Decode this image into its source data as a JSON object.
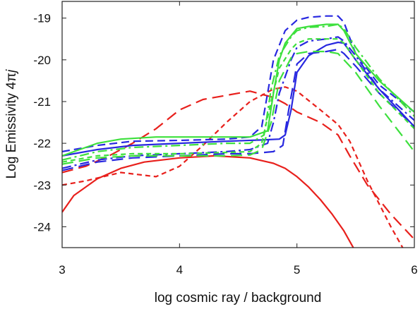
{
  "chart_data": {
    "type": "line",
    "xlabel": "log cosmic ray / background",
    "ylabel_main": "Log Emissivity 4",
    "ylabel_pi": "π",
    "ylabel_j": "j",
    "xlim": [
      3,
      6
    ],
    "ylim": [
      -24.5,
      -18.6
    ],
    "xticks": [
      3,
      4,
      5,
      6
    ],
    "xtick_labels": [
      "3",
      "4",
      "5",
      "6"
    ],
    "yticks": [
      -19,
      -20,
      -21,
      -22,
      -23,
      -24
    ],
    "ytick_labels": [
      "-19",
      "-20",
      "-21",
      "-22",
      "-23",
      "-24"
    ],
    "grid": false,
    "series": [
      {
        "color": "#e8201c",
        "dash": "solid",
        "x": [
          3.0,
          3.1,
          3.3,
          3.5,
          3.7,
          4.0,
          4.3,
          4.6,
          4.8,
          4.9,
          5.0,
          5.1,
          5.2,
          5.3,
          5.4,
          5.5
        ],
        "y": [
          -23.65,
          -23.25,
          -22.85,
          -22.6,
          -22.45,
          -22.35,
          -22.3,
          -22.35,
          -22.48,
          -22.6,
          -22.8,
          -23.05,
          -23.35,
          -23.7,
          -24.1,
          -24.6
        ]
      },
      {
        "color": "#e8201c",
        "dash": "long",
        "x": [
          3.0,
          3.2,
          3.4,
          3.6,
          3.8,
          4.0,
          4.2,
          4.4,
          4.6,
          4.8,
          4.9,
          5.0,
          5.2,
          5.35,
          5.45,
          5.6,
          5.8,
          6.0
        ],
        "y": [
          -22.7,
          -22.55,
          -22.3,
          -22.0,
          -21.65,
          -21.2,
          -20.95,
          -20.85,
          -20.75,
          -20.9,
          -21.05,
          -21.25,
          -21.5,
          -21.8,
          -22.3,
          -23.0,
          -23.7,
          -24.3
        ]
      },
      {
        "color": "#e8201c",
        "dash": "short",
        "x": [
          3.0,
          3.2,
          3.5,
          3.8,
          4.0,
          4.2,
          4.4,
          4.6,
          4.8,
          4.9,
          5.0,
          5.2,
          5.35,
          5.45,
          5.6,
          5.8,
          5.9
        ],
        "y": [
          -23.0,
          -22.9,
          -22.7,
          -22.8,
          -22.55,
          -22.05,
          -21.5,
          -21.0,
          -20.7,
          -20.65,
          -20.75,
          -21.2,
          -21.55,
          -21.95,
          -22.9,
          -24.0,
          -24.5
        ]
      },
      {
        "color": "#2828e0",
        "dash": "solid",
        "x": [
          3.0,
          3.3,
          3.6,
          4.0,
          4.4,
          4.7,
          4.85,
          4.9,
          4.95,
          5.0,
          5.1,
          5.25,
          5.35,
          5.4,
          5.5,
          5.7,
          6.0
        ],
        "y": [
          -22.3,
          -22.15,
          -22.05,
          -22.0,
          -21.95,
          -21.92,
          -21.9,
          -21.8,
          -21.2,
          -20.3,
          -19.9,
          -19.65,
          -19.58,
          -19.6,
          -20.0,
          -20.7,
          -21.6
        ]
      },
      {
        "color": "#2828e0",
        "dash": "long",
        "x": [
          3.0,
          3.3,
          3.6,
          4.0,
          4.4,
          4.6,
          4.8,
          4.88,
          4.93,
          5.0,
          5.1,
          5.25,
          5.35,
          5.4,
          5.5,
          5.7,
          6.0
        ],
        "y": [
          -22.65,
          -22.45,
          -22.35,
          -22.3,
          -22.25,
          -22.25,
          -22.2,
          -22.05,
          -21.2,
          -20.1,
          -19.85,
          -19.8,
          -19.75,
          -19.85,
          -20.15,
          -20.8,
          -21.6
        ]
      },
      {
        "color": "#2828e0",
        "dash": "medium",
        "x": [
          3.0,
          3.3,
          3.6,
          4.0,
          4.4,
          4.6,
          4.7,
          4.75,
          4.8,
          4.9,
          5.0,
          5.1,
          5.25,
          5.35,
          5.4,
          5.5,
          5.7,
          6.0
        ],
        "y": [
          -22.2,
          -22.05,
          -21.95,
          -21.93,
          -21.9,
          -21.85,
          -21.6,
          -20.8,
          -20.0,
          -19.3,
          -19.05,
          -18.98,
          -18.95,
          -18.95,
          -19.1,
          -19.85,
          -20.6,
          -21.25
        ]
      },
      {
        "color": "#2828e0",
        "dash": "dashdot",
        "x": [
          3.0,
          3.3,
          3.6,
          4.0,
          4.4,
          4.6,
          4.75,
          4.8,
          4.85,
          4.95,
          5.0,
          5.1,
          5.25,
          5.35,
          5.4,
          5.5,
          5.7,
          6.0
        ],
        "y": [
          -22.6,
          -22.4,
          -22.3,
          -22.25,
          -22.2,
          -22.15,
          -22.0,
          -21.5,
          -20.8,
          -20.0,
          -19.7,
          -19.55,
          -19.5,
          -19.45,
          -19.55,
          -19.9,
          -20.7,
          -21.45
        ]
      },
      {
        "color": "#3de03d",
        "dash": "solid",
        "x": [
          3.0,
          3.3,
          3.5,
          3.8,
          4.2,
          4.6,
          4.75,
          4.8,
          4.85,
          4.9,
          5.0,
          5.1,
          5.25,
          5.35,
          5.4,
          5.5,
          5.7,
          6.0
        ],
        "y": [
          -22.3,
          -22.0,
          -21.9,
          -21.85,
          -21.85,
          -21.85,
          -21.7,
          -20.8,
          -20.0,
          -19.6,
          -19.25,
          -19.2,
          -19.15,
          -19.15,
          -19.3,
          -19.85,
          -20.5,
          -21.25
        ]
      },
      {
        "color": "#3de03d",
        "dash": "long",
        "x": [
          3.0,
          3.3,
          3.6,
          4.0,
          4.4,
          4.6,
          4.7,
          4.78,
          4.85,
          4.95,
          5.0,
          5.1,
          5.25,
          5.35,
          5.4,
          5.5,
          5.7,
          6.0
        ],
        "y": [
          -22.5,
          -22.35,
          -22.3,
          -22.3,
          -22.3,
          -22.28,
          -22.15,
          -21.5,
          -20.5,
          -19.95,
          -19.85,
          -19.8,
          -19.8,
          -19.85,
          -20.0,
          -20.3,
          -21.1,
          -22.2
        ]
      },
      {
        "color": "#3de03d",
        "dash": "short",
        "x": [
          3.0,
          3.3,
          3.6,
          4.0,
          4.4,
          4.6,
          4.7,
          4.78,
          4.85,
          4.95,
          5.0,
          5.1,
          5.25,
          5.35,
          5.4,
          5.5,
          5.7,
          6.0
        ],
        "y": [
          -22.45,
          -22.3,
          -22.25,
          -22.25,
          -22.22,
          -22.2,
          -22.0,
          -21.0,
          -20.2,
          -19.75,
          -19.6,
          -19.5,
          -19.5,
          -19.5,
          -19.6,
          -20.0,
          -20.8,
          -21.65
        ]
      },
      {
        "color": "#3de03d",
        "dash": "dashdot",
        "x": [
          3.0,
          3.3,
          3.6,
          4.0,
          4.4,
          4.6,
          4.72,
          4.78,
          4.85,
          4.95,
          5.0,
          5.1,
          5.25,
          5.35,
          5.4,
          5.5,
          5.7,
          6.0
        ],
        "y": [
          -22.4,
          -22.2,
          -22.1,
          -22.05,
          -22.0,
          -22.0,
          -21.8,
          -20.7,
          -19.9,
          -19.45,
          -19.3,
          -19.22,
          -19.2,
          -19.15,
          -19.25,
          -19.7,
          -20.45,
          -21.35
        ]
      }
    ]
  }
}
